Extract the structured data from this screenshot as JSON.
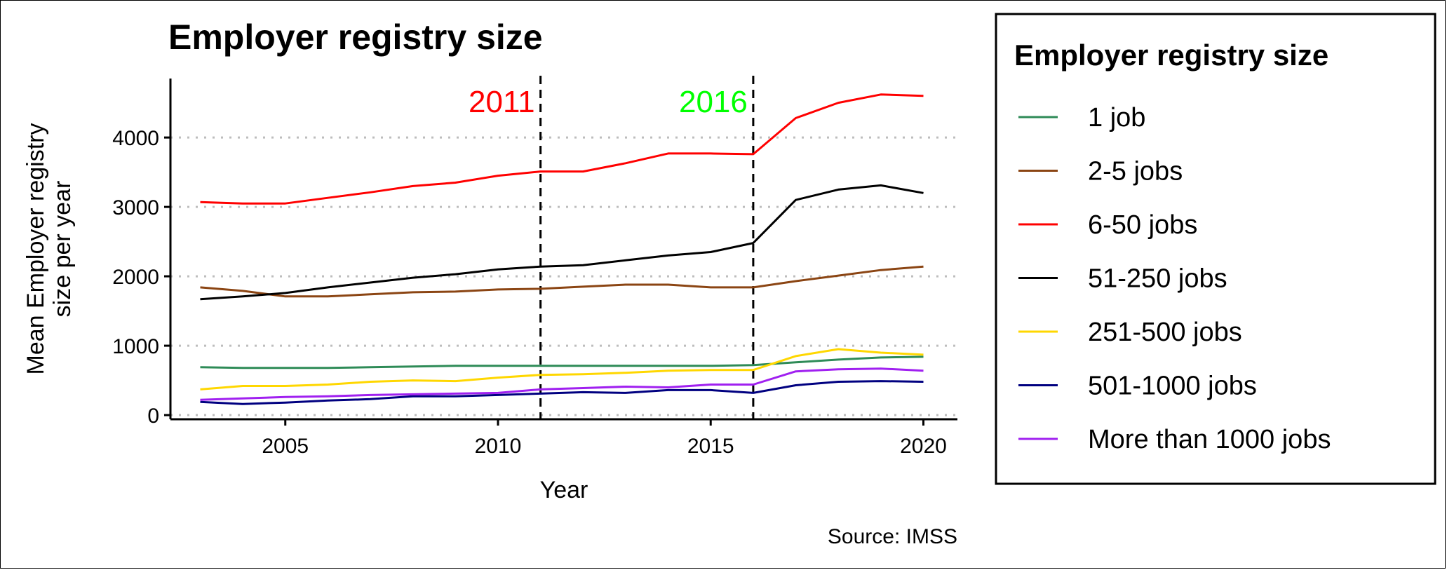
{
  "chart_data": {
    "type": "line",
    "title": "Employer registry size",
    "xlabel": "Year",
    "ylabel_lines": [
      "Mean Employer registry",
      "size per year"
    ],
    "caption": "Source: IMSS",
    "xlim": [
      2002.3,
      2020.8
    ],
    "ylim": [
      -60,
      4850
    ],
    "x_ticks": [
      2005,
      2010,
      2015,
      2020
    ],
    "y_ticks": [
      0,
      1000,
      2000,
      3000,
      4000
    ],
    "grid": "horizontal-dotted",
    "legend": {
      "title": "Employer registry size",
      "position": "right"
    },
    "reference_lines": [
      {
        "x": 2011,
        "label": "2011",
        "color": "#ff0000"
      },
      {
        "x": 2016,
        "label": "2016",
        "color": "#00ff00"
      }
    ],
    "x": [
      2003,
      2004,
      2005,
      2006,
      2007,
      2008,
      2009,
      2010,
      2011,
      2012,
      2013,
      2014,
      2015,
      2016,
      2017,
      2018,
      2019,
      2020
    ],
    "series": [
      {
        "name": "1 job",
        "color": "#2e8b57",
        "values": [
          690,
          680,
          680,
          680,
          690,
          700,
          710,
          710,
          710,
          710,
          710,
          710,
          710,
          720,
          760,
          800,
          830,
          840
        ]
      },
      {
        "name": "2-5 jobs",
        "color": "#8b4513",
        "values": [
          1840,
          1790,
          1710,
          1710,
          1740,
          1770,
          1780,
          1810,
          1820,
          1850,
          1880,
          1880,
          1840,
          1840,
          1930,
          2010,
          2090,
          2140
        ]
      },
      {
        "name": "6-50 jobs",
        "color": "#ff0000",
        "values": [
          3070,
          3050,
          3050,
          3130,
          3210,
          3300,
          3350,
          3450,
          3510,
          3510,
          3630,
          3770,
          3770,
          3760,
          4280,
          4500,
          4620,
          4600
        ]
      },
      {
        "name": "51-250 jobs",
        "color": "#000000",
        "values": [
          1670,
          1710,
          1760,
          1840,
          1910,
          1980,
          2030,
          2100,
          2140,
          2160,
          2230,
          2300,
          2350,
          2480,
          3100,
          3250,
          3310,
          3200
        ]
      },
      {
        "name": "251-500 jobs",
        "color": "#ffd700",
        "values": [
          370,
          420,
          420,
          440,
          480,
          500,
          490,
          540,
          580,
          590,
          610,
          640,
          650,
          650,
          850,
          950,
          900,
          870
        ]
      },
      {
        "name": "501-1000 jobs",
        "color": "#000080",
        "values": [
          190,
          160,
          180,
          210,
          230,
          270,
          270,
          290,
          310,
          330,
          320,
          360,
          360,
          320,
          430,
          480,
          490,
          480
        ]
      },
      {
        "name": "More than 1000 jobs",
        "color": "#a020f0",
        "values": [
          220,
          240,
          260,
          270,
          290,
          300,
          310,
          320,
          370,
          390,
          410,
          400,
          440,
          440,
          630,
          660,
          670,
          640
        ]
      }
    ]
  }
}
